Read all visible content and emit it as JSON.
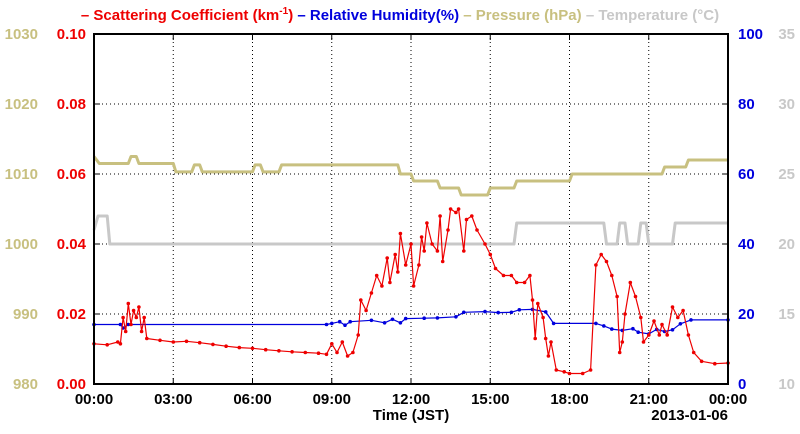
{
  "chart_data": {
    "type": "line",
    "xlabel": "Time (JST)",
    "date_label": "2013-01-06",
    "x_ticks": [
      "00:00",
      "03:00",
      "06:00",
      "09:00",
      "12:00",
      "15:00",
      "18:00",
      "21:00",
      "00:00"
    ],
    "x_range_hours": [
      0,
      24
    ],
    "grid": true,
    "legend": {
      "placement": "top",
      "items": [
        {
          "text": "Scattering Coefficient (km",
          "sup": "-1",
          "after": ")",
          "color": "#ee0000"
        },
        {
          "text": "Relative Humidity(%)",
          "color": "#0000dd"
        },
        {
          "text": "Pressure (hPa)",
          "color": "#c8c080"
        },
        {
          "text": "Temperature (°C)",
          "color": "#c8c8c8"
        }
      ]
    },
    "axes": {
      "pressure": {
        "side": "left-outer",
        "ticks": [
          "980",
          "990",
          "1000",
          "1010",
          "1020",
          "1030"
        ],
        "range": [
          980,
          1030
        ],
        "color": "#c8c080"
      },
      "scattering": {
        "side": "left-inner",
        "ticks": [
          "0.00",
          "0.02",
          "0.04",
          "0.06",
          "0.08",
          "0.10"
        ],
        "range": [
          0,
          0.1
        ],
        "color": "#ee0000"
      },
      "humidity": {
        "side": "right-inner",
        "ticks": [
          "0",
          "20",
          "40",
          "60",
          "80",
          "100"
        ],
        "range": [
          0,
          100
        ],
        "color": "#0000dd"
      },
      "temperature": {
        "side": "right-outer",
        "ticks": [
          "10",
          "15",
          "20",
          "25",
          "30",
          "35"
        ],
        "range": [
          10,
          35
        ],
        "color": "#c8c8c8"
      }
    },
    "series": [
      {
        "name": "Scattering Coefficient",
        "axis": "scattering",
        "color": "#ee0000",
        "markers": true,
        "points": [
          [
            0,
            0.0115
          ],
          [
            0.5,
            0.0112
          ],
          [
            0.9,
            0.012
          ],
          [
            1.0,
            0.0115
          ],
          [
            1.1,
            0.019
          ],
          [
            1.2,
            0.015
          ],
          [
            1.3,
            0.023
          ],
          [
            1.4,
            0.017
          ],
          [
            1.5,
            0.021
          ],
          [
            1.6,
            0.019
          ],
          [
            1.7,
            0.022
          ],
          [
            1.8,
            0.015
          ],
          [
            1.9,
            0.019
          ],
          [
            2.0,
            0.013
          ],
          [
            2.5,
            0.0125
          ],
          [
            3.0,
            0.012
          ],
          [
            3.5,
            0.0122
          ],
          [
            4.0,
            0.0118
          ],
          [
            4.5,
            0.0113
          ],
          [
            5.0,
            0.0108
          ],
          [
            5.5,
            0.0104
          ],
          [
            6.0,
            0.0102
          ],
          [
            6.5,
            0.0098
          ],
          [
            7.0,
            0.0095
          ],
          [
            7.5,
            0.0092
          ],
          [
            8.0,
            0.009
          ],
          [
            8.5,
            0.0088
          ],
          [
            8.8,
            0.0085
          ],
          [
            9.0,
            0.0115
          ],
          [
            9.2,
            0.009
          ],
          [
            9.4,
            0.012
          ],
          [
            9.6,
            0.008
          ],
          [
            9.8,
            0.009
          ],
          [
            10.0,
            0.014
          ],
          [
            10.1,
            0.024
          ],
          [
            10.3,
            0.021
          ],
          [
            10.5,
            0.026
          ],
          [
            10.7,
            0.031
          ],
          [
            10.9,
            0.028
          ],
          [
            11.1,
            0.036
          ],
          [
            11.2,
            0.029
          ],
          [
            11.4,
            0.037
          ],
          [
            11.5,
            0.032
          ],
          [
            11.6,
            0.043
          ],
          [
            11.8,
            0.034
          ],
          [
            12.0,
            0.04
          ],
          [
            12.1,
            0.028
          ],
          [
            12.3,
            0.034
          ],
          [
            12.4,
            0.042
          ],
          [
            12.5,
            0.038
          ],
          [
            12.6,
            0.046
          ],
          [
            12.8,
            0.04
          ],
          [
            13.0,
            0.038
          ],
          [
            13.1,
            0.048
          ],
          [
            13.2,
            0.035
          ],
          [
            13.4,
            0.044
          ],
          [
            13.5,
            0.05
          ],
          [
            13.7,
            0.049
          ],
          [
            13.8,
            0.05
          ],
          [
            14.0,
            0.038
          ],
          [
            14.1,
            0.047
          ],
          [
            14.3,
            0.048
          ],
          [
            14.5,
            0.044
          ],
          [
            14.8,
            0.04
          ],
          [
            15.0,
            0.037
          ],
          [
            15.2,
            0.033
          ],
          [
            15.5,
            0.031
          ],
          [
            15.8,
            0.031
          ],
          [
            16.0,
            0.029
          ],
          [
            16.3,
            0.029
          ],
          [
            16.5,
            0.031
          ],
          [
            16.6,
            0.024
          ],
          [
            16.7,
            0.013
          ],
          [
            16.8,
            0.023
          ],
          [
            17.0,
            0.019
          ],
          [
            17.1,
            0.013
          ],
          [
            17.2,
            0.008
          ],
          [
            17.3,
            0.012
          ],
          [
            17.5,
            0.004
          ],
          [
            17.8,
            0.0035
          ],
          [
            18.0,
            0.003
          ],
          [
            18.5,
            0.003
          ],
          [
            18.8,
            0.004
          ],
          [
            19.0,
            0.034
          ],
          [
            19.2,
            0.037
          ],
          [
            19.4,
            0.035
          ],
          [
            19.6,
            0.031
          ],
          [
            19.8,
            0.025
          ],
          [
            19.9,
            0.009
          ],
          [
            20.0,
            0.012
          ],
          [
            20.1,
            0.02
          ],
          [
            20.3,
            0.029
          ],
          [
            20.5,
            0.025
          ],
          [
            20.7,
            0.019
          ],
          [
            20.8,
            0.012
          ],
          [
            21.0,
            0.014
          ],
          [
            21.2,
            0.018
          ],
          [
            21.4,
            0.014
          ],
          [
            21.5,
            0.017
          ],
          [
            21.7,
            0.014
          ],
          [
            21.9,
            0.022
          ],
          [
            22.1,
            0.019
          ],
          [
            22.3,
            0.021
          ],
          [
            22.5,
            0.014
          ],
          [
            22.7,
            0.009
          ],
          [
            23.0,
            0.0065
          ],
          [
            23.5,
            0.0058
          ],
          [
            24.0,
            0.006
          ]
        ]
      },
      {
        "name": "Relative Humidity",
        "axis": "humidity",
        "color": "#0000dd",
        "markers": true,
        "points": [
          [
            0,
            17
          ],
          [
            1.0,
            17
          ],
          [
            1.1,
            16
          ],
          [
            1.3,
            17
          ],
          [
            8.8,
            17
          ],
          [
            9.0,
            17.3
          ],
          [
            9.3,
            17.8
          ],
          [
            9.5,
            16.8
          ],
          [
            9.7,
            17.8
          ],
          [
            10.5,
            18.2
          ],
          [
            11.0,
            17.5
          ],
          [
            11.3,
            18.5
          ],
          [
            11.6,
            17.5
          ],
          [
            11.8,
            18.7
          ],
          [
            12.5,
            18.8
          ],
          [
            13.0,
            18.9
          ],
          [
            13.7,
            19.2
          ],
          [
            14.0,
            20.5
          ],
          [
            14.8,
            20.7
          ],
          [
            15.3,
            20.4
          ],
          [
            15.8,
            20.5
          ],
          [
            16.1,
            21.2
          ],
          [
            16.6,
            21.3
          ],
          [
            17.1,
            20.6
          ],
          [
            17.4,
            17.3
          ],
          [
            19.0,
            17.3
          ],
          [
            19.3,
            16.6
          ],
          [
            19.6,
            15.7
          ],
          [
            20.0,
            15.3
          ],
          [
            20.4,
            15.8
          ],
          [
            20.6,
            14.8
          ],
          [
            21.0,
            14.3
          ],
          [
            21.3,
            15.6
          ],
          [
            21.6,
            15
          ],
          [
            21.9,
            15.5
          ],
          [
            22.2,
            17.2
          ],
          [
            22.6,
            18.3
          ],
          [
            24.0,
            18.3
          ]
        ]
      },
      {
        "name": "Pressure",
        "axis": "pressure",
        "color": "#c8c080",
        "markers": false,
        "points": [
          [
            0,
            1012.5
          ],
          [
            0.2,
            1011.5
          ],
          [
            1.3,
            1011.5
          ],
          [
            1.4,
            1012.5
          ],
          [
            1.6,
            1012.5
          ],
          [
            1.7,
            1011.5
          ],
          [
            3.0,
            1011.5
          ],
          [
            3.1,
            1010.3
          ],
          [
            3.7,
            1010.3
          ],
          [
            3.8,
            1011.3
          ],
          [
            4.0,
            1011.3
          ],
          [
            4.1,
            1010.3
          ],
          [
            6.0,
            1010.3
          ],
          [
            6.1,
            1011.3
          ],
          [
            6.3,
            1011.3
          ],
          [
            6.4,
            1010.3
          ],
          [
            7.0,
            1010.3
          ],
          [
            7.1,
            1011.3
          ],
          [
            11.5,
            1011.3
          ],
          [
            11.6,
            1010
          ],
          [
            12.0,
            1010
          ],
          [
            12.1,
            1009
          ],
          [
            13.0,
            1009
          ],
          [
            13.1,
            1008
          ],
          [
            13.8,
            1008
          ],
          [
            13.9,
            1007
          ],
          [
            14.9,
            1007
          ],
          [
            15.0,
            1008
          ],
          [
            15.9,
            1008
          ],
          [
            16.0,
            1009
          ],
          [
            18.0,
            1009
          ],
          [
            18.1,
            1010
          ],
          [
            21.5,
            1010
          ],
          [
            21.6,
            1011
          ],
          [
            22.4,
            1011
          ],
          [
            22.5,
            1012
          ],
          [
            24.0,
            1012
          ]
        ]
      },
      {
        "name": "Temperature",
        "axis": "temperature",
        "color": "#c8c8c8",
        "markers": false,
        "points": [
          [
            0,
            21
          ],
          [
            0.15,
            22
          ],
          [
            0.5,
            22
          ],
          [
            0.6,
            20
          ],
          [
            15.9,
            20
          ],
          [
            16.0,
            21.5
          ],
          [
            19.3,
            21.5
          ],
          [
            19.4,
            20
          ],
          [
            19.8,
            20
          ],
          [
            19.9,
            21.5
          ],
          [
            20.1,
            21.5
          ],
          [
            20.2,
            20
          ],
          [
            20.6,
            20
          ],
          [
            20.7,
            21.5
          ],
          [
            20.9,
            21.5
          ],
          [
            21.0,
            20
          ],
          [
            21.9,
            20
          ],
          [
            22.0,
            21.5
          ],
          [
            24.0,
            21.5
          ]
        ]
      }
    ]
  }
}
